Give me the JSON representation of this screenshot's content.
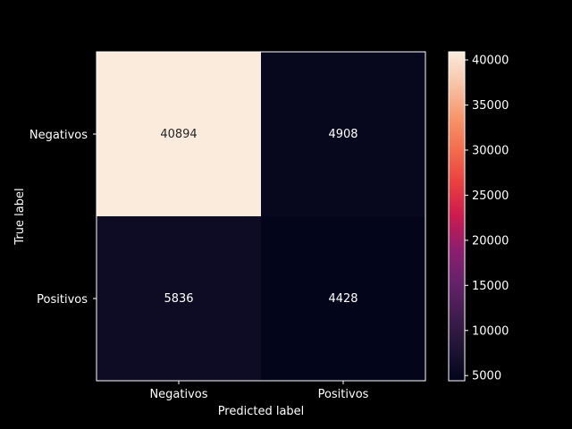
{
  "chart_data": {
    "type": "heatmap",
    "title": "",
    "xlabel": "Predicted label",
    "ylabel": "True label",
    "x_categories": [
      "Negativos",
      "Positivos"
    ],
    "y_categories": [
      "Negativos",
      "Positivos"
    ],
    "values": [
      [
        40894,
        4908
      ],
      [
        5836,
        4428
      ]
    ],
    "colormap": "rocket",
    "colorbar": {
      "min": 4428,
      "max": 40894,
      "ticks": [
        5000,
        10000,
        15000,
        20000,
        25000,
        30000,
        35000,
        40000
      ]
    },
    "background_color": "#000000",
    "text_color": "#ffffff"
  }
}
